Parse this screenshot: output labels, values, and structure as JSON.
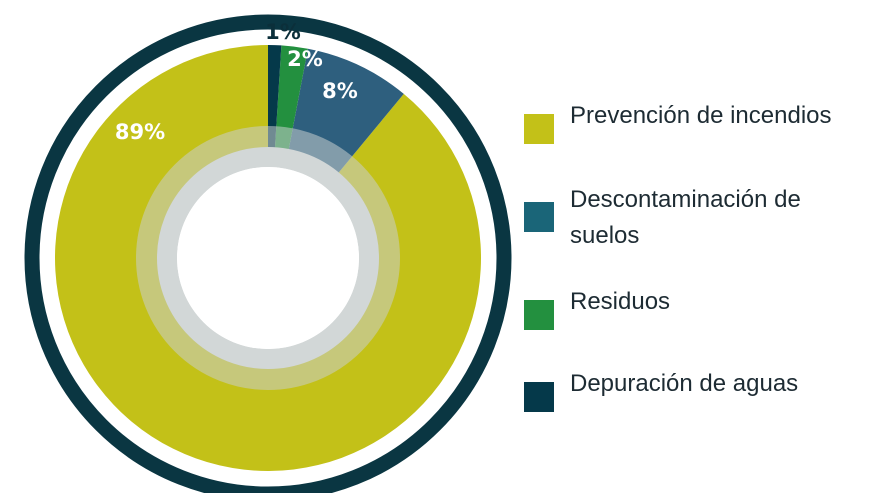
{
  "chart_data": {
    "type": "donut",
    "categories": [
      "Prevención de incendios",
      "Descontaminación de suelos",
      "Residuos",
      "Depuración de aguas"
    ],
    "values": [
      89,
      8,
      2,
      1
    ],
    "value_labels": [
      "89%",
      "8%",
      "2%",
      "1%"
    ],
    "colors": [
      "#c3c118",
      "#2e5f7e",
      "#23903f",
      "#05394a"
    ],
    "legend_colors": [
      "#c3c118",
      "#1a6578",
      "#23903f",
      "#05394a"
    ],
    "legend": "right"
  }
}
